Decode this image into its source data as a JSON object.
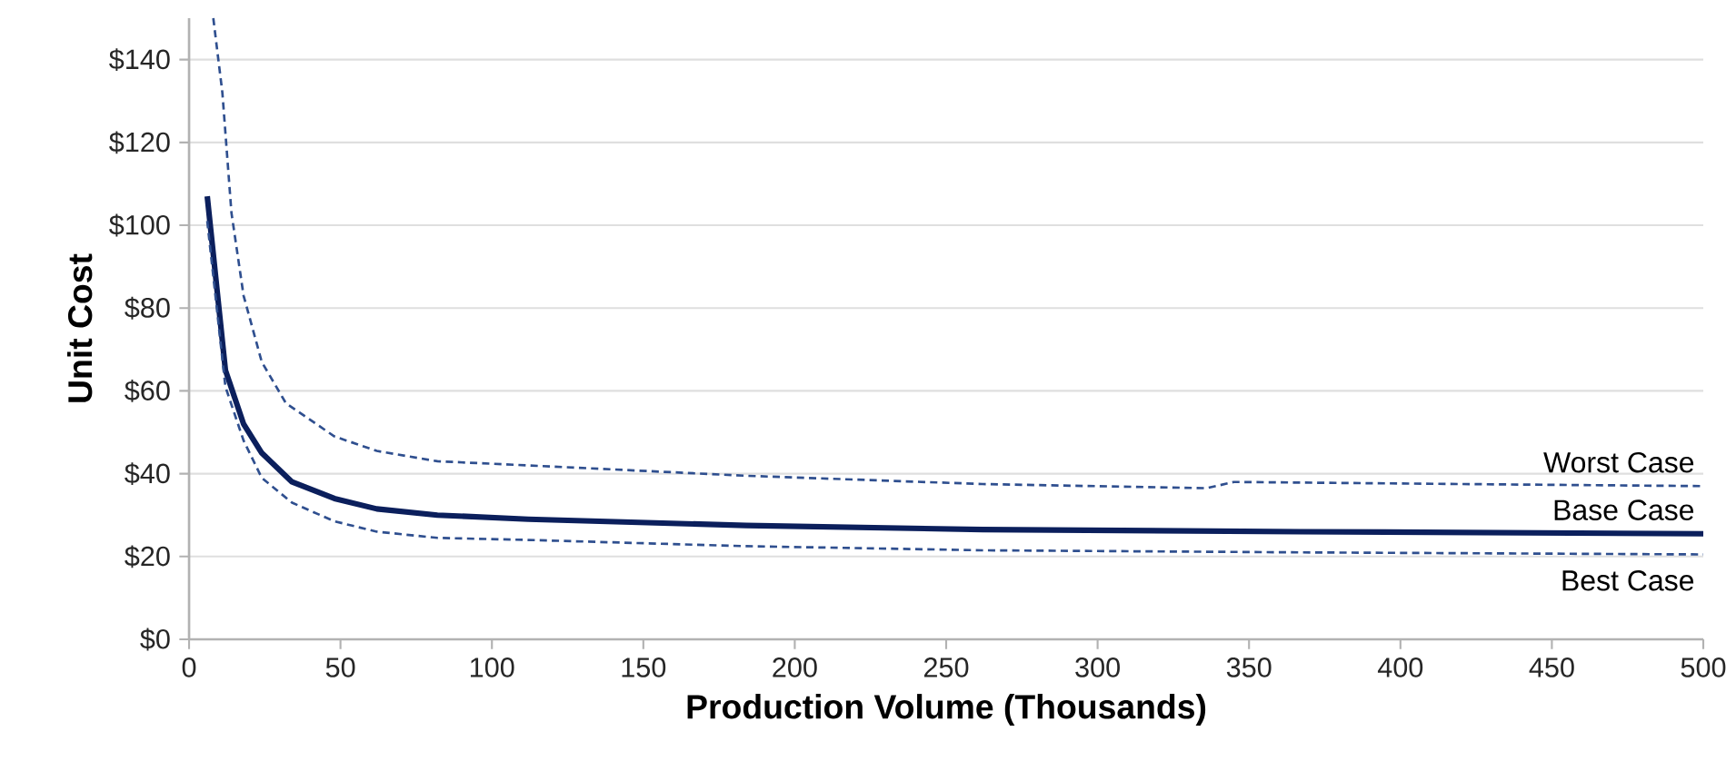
{
  "chart_data": {
    "type": "line",
    "xlabel": "Production Volume (Thousands)",
    "ylabel": "Unit Cost",
    "xlim": [
      0,
      500
    ],
    "ylim": [
      0,
      150
    ],
    "xticks": [
      0,
      50,
      100,
      150,
      200,
      250,
      300,
      350,
      400,
      450,
      500
    ],
    "yticks": [
      {
        "value": 0,
        "label": "$0"
      },
      {
        "value": 20,
        "label": "$20"
      },
      {
        "value": 40,
        "label": "$40"
      },
      {
        "value": 60,
        "label": "$60"
      },
      {
        "value": 80,
        "label": "$80"
      },
      {
        "value": 100,
        "label": "$100"
      },
      {
        "value": 120,
        "label": "$120"
      },
      {
        "value": 140,
        "label": "$140"
      }
    ],
    "grid": "y",
    "marker": "none",
    "series": [
      {
        "name": "Worst Case",
        "color": "#2f4f8f",
        "line_style": "dashed",
        "x": [
          8,
          11,
          14,
          18,
          24,
          32,
          48,
          62,
          82,
          112,
          184,
          262,
          336,
          345,
          420,
          500
        ],
        "values": [
          150,
          132,
          103,
          83,
          67,
          57,
          49,
          45.5,
          43,
          42,
          39.5,
          37.5,
          36.5,
          38,
          37.5,
          37
        ]
      },
      {
        "name": "Base Case",
        "color": "#0b1f5c",
        "line_style": "solid",
        "x": [
          6,
          12,
          18,
          24,
          34,
          48,
          62,
          82,
          112,
          184,
          262,
          367,
          500
        ],
        "values": [
          107,
          65,
          52,
          45,
          38,
          34,
          31.5,
          30,
          29,
          27.5,
          26.5,
          26,
          25.5
        ]
      },
      {
        "name": "Best Case",
        "color": "#2f4f8f",
        "line_style": "dashed",
        "x": [
          6,
          12,
          18,
          24,
          34,
          48,
          62,
          82,
          112,
          184,
          262,
          367,
          500
        ],
        "values": [
          101,
          61,
          48,
          39,
          33,
          28.5,
          26,
          24.5,
          24,
          22.5,
          21.5,
          21,
          20.5
        ]
      }
    ]
  }
}
